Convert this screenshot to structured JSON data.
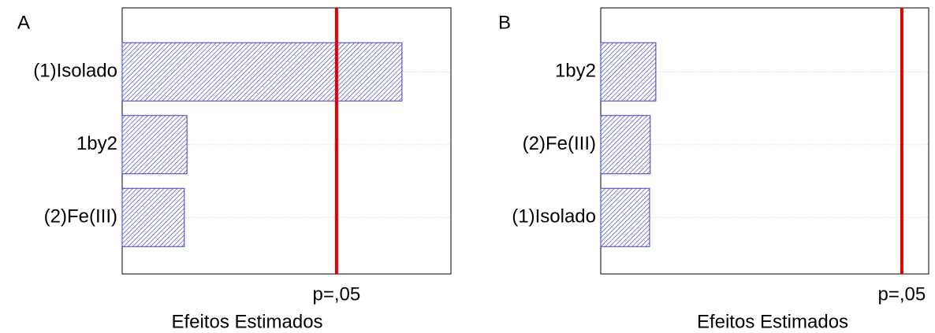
{
  "chart_data": [
    {
      "type": "bar",
      "orientation": "horizontal",
      "panel_label": "A",
      "categories": [
        "(1)Isolado",
        "1by2",
        "(2)Fe(III)"
      ],
      "values": [
        85.1,
        19.7,
        18.9
      ],
      "color": "#3a3acc",
      "xlim": [
        0,
        100
      ],
      "xlabel": "Efeitos Estimados",
      "reference_line": {
        "value": 65.2,
        "label": "p=,05",
        "color": "#e00000"
      },
      "grid": true
    },
    {
      "type": "bar",
      "orientation": "horizontal",
      "panel_label": "B",
      "categories": [
        "1by2",
        "(2)Fe(III)",
        "(1)Isolado"
      ],
      "values": [
        16.8,
        15.1,
        14.9
      ],
      "color": "#3a3acc",
      "xlim": [
        0,
        100
      ],
      "xlabel": "Efeitos Estimados",
      "reference_line": {
        "value": 91.8,
        "label": "p=,05",
        "color": "#e00000"
      },
      "grid": true
    }
  ]
}
